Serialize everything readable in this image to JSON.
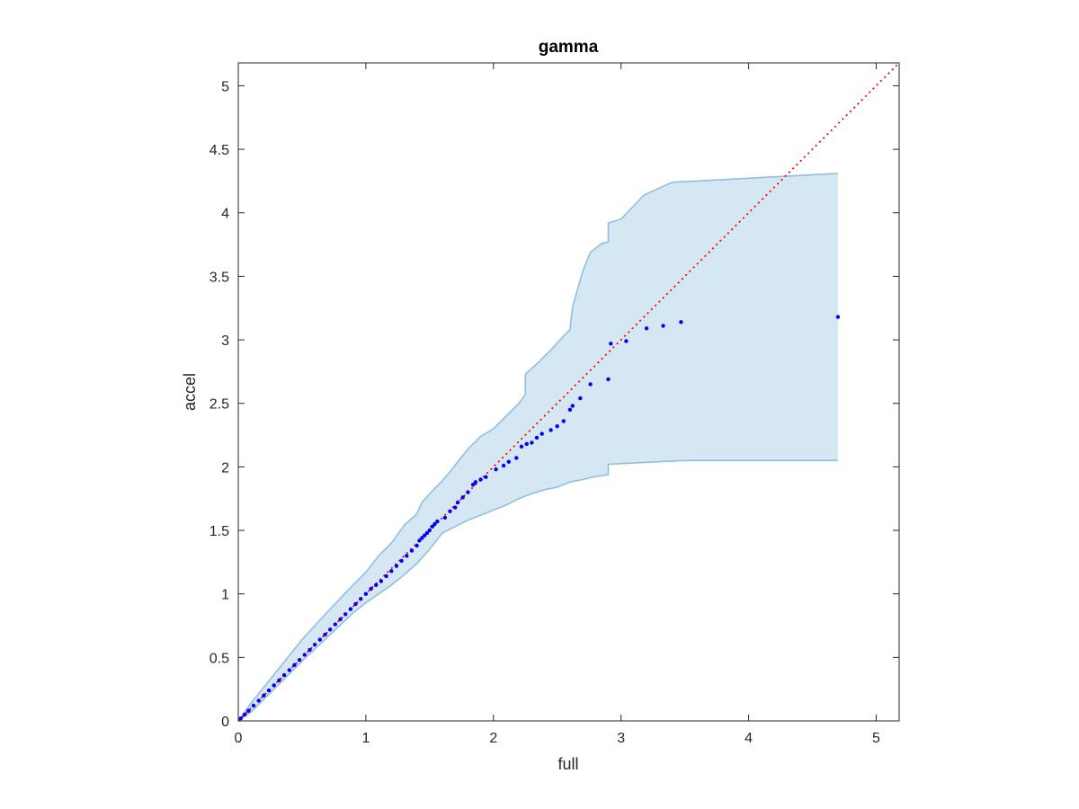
{
  "chart_data": {
    "type": "scatter",
    "title": "gamma",
    "xlabel": "full",
    "ylabel": "accel",
    "xlim": [
      0,
      5.18
    ],
    "ylim": [
      0,
      5.18
    ],
    "xticks": [
      "0",
      "1",
      "2",
      "3",
      "4",
      "5"
    ],
    "yticks": [
      "0",
      "0.5",
      "1",
      "1.5",
      "2",
      "2.5",
      "3",
      "3.5",
      "4",
      "4.5",
      "5"
    ],
    "grid": false,
    "legend": "none",
    "colors": {
      "points": "#0000ff",
      "reference_line": "#ff0000",
      "band_fill": "#d6e7f4",
      "band_edge": "#8fbfdf",
      "axes": "#262626"
    },
    "reference_line": {
      "style": "dotted",
      "x": [
        0,
        5.18
      ],
      "y": [
        0,
        5.18
      ]
    },
    "band": {
      "upper": [
        [
          0,
          0
        ],
        [
          0.1,
          0.14
        ],
        [
          0.3,
          0.39
        ],
        [
          0.5,
          0.64
        ],
        [
          0.7,
          0.86
        ],
        [
          0.9,
          1.07
        ],
        [
          1.0,
          1.17
        ],
        [
          1.1,
          1.3
        ],
        [
          1.2,
          1.4
        ],
        [
          1.3,
          1.54
        ],
        [
          1.4,
          1.63
        ],
        [
          1.44,
          1.72
        ],
        [
          1.52,
          1.81
        ],
        [
          1.6,
          1.89
        ],
        [
          1.66,
          1.96
        ],
        [
          1.72,
          2.04
        ],
        [
          1.8,
          2.14
        ],
        [
          1.9,
          2.24
        ],
        [
          2.0,
          2.3
        ],
        [
          2.1,
          2.4
        ],
        [
          2.2,
          2.5
        ],
        [
          2.25,
          2.57
        ],
        [
          2.25,
          2.73
        ],
        [
          2.35,
          2.82
        ],
        [
          2.45,
          2.92
        ],
        [
          2.55,
          3.03
        ],
        [
          2.6,
          3.08
        ],
        [
          2.62,
          3.26
        ],
        [
          2.7,
          3.54
        ],
        [
          2.76,
          3.69
        ],
        [
          2.85,
          3.76
        ],
        [
          2.9,
          3.77
        ],
        [
          2.9,
          3.92
        ],
        [
          3.0,
          3.95
        ],
        [
          3.18,
          4.14
        ],
        [
          3.4,
          4.24
        ],
        [
          4.7,
          4.31
        ]
      ],
      "lower": [
        [
          0,
          0
        ],
        [
          0.1,
          0.07
        ],
        [
          0.3,
          0.27
        ],
        [
          0.5,
          0.47
        ],
        [
          0.7,
          0.66
        ],
        [
          0.9,
          0.85
        ],
        [
          1.0,
          0.93
        ],
        [
          1.1,
          1.0
        ],
        [
          1.2,
          1.07
        ],
        [
          1.3,
          1.15
        ],
        [
          1.4,
          1.24
        ],
        [
          1.5,
          1.35
        ],
        [
          1.6,
          1.48
        ],
        [
          1.7,
          1.53
        ],
        [
          1.8,
          1.58
        ],
        [
          1.9,
          1.62
        ],
        [
          2.0,
          1.66
        ],
        [
          2.1,
          1.7
        ],
        [
          2.2,
          1.75
        ],
        [
          2.3,
          1.79
        ],
        [
          2.4,
          1.82
        ],
        [
          2.5,
          1.84
        ],
        [
          2.6,
          1.88
        ],
        [
          2.7,
          1.9
        ],
        [
          2.78,
          1.92
        ],
        [
          2.9,
          1.94
        ],
        [
          2.9,
          2.02
        ],
        [
          3.1,
          2.03
        ],
        [
          3.5,
          2.05
        ],
        [
          4.7,
          2.05
        ]
      ]
    },
    "points": {
      "x": [
        0.02,
        0.05,
        0.08,
        0.12,
        0.16,
        0.2,
        0.24,
        0.28,
        0.32,
        0.36,
        0.4,
        0.44,
        0.48,
        0.52,
        0.56,
        0.6,
        0.64,
        0.68,
        0.72,
        0.76,
        0.8,
        0.84,
        0.88,
        0.92,
        0.96,
        1.0,
        1.04,
        1.08,
        1.12,
        1.16,
        1.2,
        1.24,
        1.28,
        1.32,
        1.36,
        1.4,
        1.42,
        1.44,
        1.46,
        1.48,
        1.5,
        1.52,
        1.54,
        1.56,
        1.62,
        1.66,
        1.7,
        1.72,
        1.76,
        1.8,
        1.84,
        1.86,
        1.9,
        1.94,
        2.02,
        2.08,
        2.12,
        2.18,
        2.22,
        2.26,
        2.3,
        2.34,
        2.38,
        2.45,
        2.5,
        2.55,
        2.6,
        2.62,
        2.68,
        2.76,
        2.9,
        2.92,
        3.04,
        3.2,
        3.33,
        3.47,
        4.7
      ],
      "y": [
        0.02,
        0.05,
        0.08,
        0.12,
        0.16,
        0.2,
        0.24,
        0.28,
        0.32,
        0.36,
        0.4,
        0.44,
        0.48,
        0.52,
        0.56,
        0.6,
        0.64,
        0.68,
        0.72,
        0.76,
        0.8,
        0.84,
        0.88,
        0.92,
        0.96,
        1.0,
        1.04,
        1.07,
        1.1,
        1.14,
        1.18,
        1.22,
        1.26,
        1.3,
        1.34,
        1.38,
        1.42,
        1.44,
        1.46,
        1.48,
        1.5,
        1.53,
        1.55,
        1.57,
        1.6,
        1.65,
        1.68,
        1.72,
        1.76,
        1.8,
        1.86,
        1.88,
        1.9,
        1.92,
        1.98,
        2.01,
        2.04,
        2.07,
        2.16,
        2.18,
        2.19,
        2.23,
        2.26,
        2.29,
        2.32,
        2.36,
        2.45,
        2.48,
        2.54,
        2.65,
        2.69,
        2.97,
        2.99,
        3.09,
        3.11,
        3.14,
        3.18
      ]
    }
  }
}
